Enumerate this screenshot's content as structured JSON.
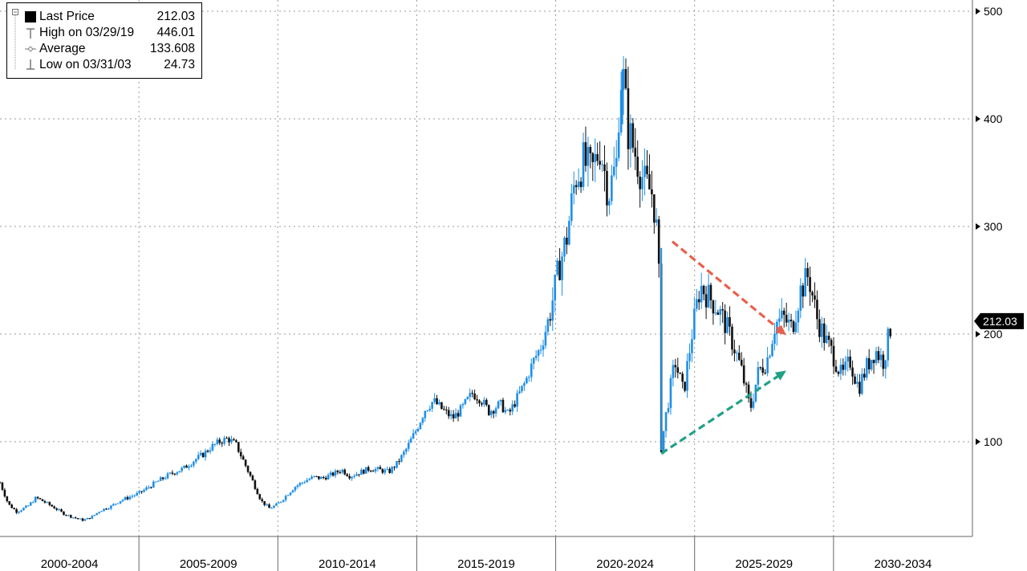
{
  "legend": {
    "items": [
      {
        "label": "Last Price",
        "value": "212.03",
        "marker": "filled-square-icon"
      },
      {
        "label": "High on 03/29/19",
        "value": "446.01",
        "marker": "high-marker-icon"
      },
      {
        "label": "Average",
        "value": "133.608",
        "marker": "average-marker-icon"
      },
      {
        "label": "Low on 03/31/03",
        "value": "24.73",
        "marker": "low-marker-icon"
      }
    ]
  },
  "last_price_tag": "212.03",
  "colors": {
    "up": "#1f8fe6",
    "down": "#111111",
    "trend_upper": "#e8604c",
    "trend_lower": "#22a086",
    "grid": "#9a9a9a"
  },
  "chart_data": {
    "type": "candlestick",
    "y_axis": {
      "ticks": [
        100,
        200,
        300,
        400,
        500
      ],
      "range": [
        0,
        500
      ],
      "side": "right"
    },
    "x_axis": {
      "labels": [
        "2000-2004",
        "2005-2009",
        "2010-2014",
        "2015-2019",
        "2020-2024",
        "2025-2029",
        "2030-2034"
      ],
      "range": [
        2000,
        2035
      ]
    },
    "grid": true,
    "series": [
      {
        "points": [
          [
            2000.0,
            62
          ],
          [
            2000.3,
            42
          ],
          [
            2000.6,
            35
          ],
          [
            2001.0,
            40
          ],
          [
            2001.3,
            48
          ],
          [
            2001.6,
            44
          ],
          [
            2002.0,
            38
          ],
          [
            2002.3,
            33
          ],
          [
            2002.6,
            30
          ],
          [
            2003.0,
            27
          ],
          [
            2003.3,
            30
          ],
          [
            2003.6,
            36
          ],
          [
            2004.0,
            40
          ],
          [
            2004.3,
            45
          ],
          [
            2004.6,
            48
          ],
          [
            2005.0,
            52
          ],
          [
            2005.3,
            57
          ],
          [
            2005.6,
            62
          ],
          [
            2006.0,
            68
          ],
          [
            2006.3,
            72
          ],
          [
            2006.6,
            75
          ],
          [
            2007.0,
            83
          ],
          [
            2007.3,
            88
          ],
          [
            2007.6,
            95
          ],
          [
            2007.9,
            100
          ],
          [
            2008.2,
            103
          ],
          [
            2008.5,
            97
          ],
          [
            2008.8,
            80
          ],
          [
            2009.1,
            63
          ],
          [
            2009.4,
            45
          ],
          [
            2009.7,
            38
          ],
          [
            2010.0,
            42
          ],
          [
            2010.3,
            50
          ],
          [
            2010.6,
            58
          ],
          [
            2011.0,
            64
          ],
          [
            2011.3,
            67
          ],
          [
            2011.6,
            66
          ],
          [
            2012.0,
            70
          ],
          [
            2012.3,
            74
          ],
          [
            2012.6,
            68
          ],
          [
            2013.0,
            72
          ],
          [
            2013.3,
            75
          ],
          [
            2013.6,
            74
          ],
          [
            2014.0,
            72
          ],
          [
            2014.3,
            80
          ],
          [
            2014.6,
            92
          ],
          [
            2015.0,
            112
          ],
          [
            2015.3,
            130
          ],
          [
            2015.6,
            138
          ],
          [
            2016.0,
            128
          ],
          [
            2016.3,
            122
          ],
          [
            2016.6,
            130
          ],
          [
            2017.0,
            145
          ],
          [
            2017.3,
            140
          ],
          [
            2017.6,
            128
          ],
          [
            2018.0,
            135
          ],
          [
            2018.3,
            125
          ],
          [
            2018.6,
            140
          ],
          [
            2018.9,
            155
          ],
          [
            2019.2,
            175
          ],
          [
            2019.5,
            190
          ],
          [
            2019.8,
            220
          ],
          [
            2020.1,
            260
          ],
          [
            2020.4,
            290
          ],
          [
            2020.7,
            345
          ],
          [
            2021.0,
            360
          ],
          [
            2021.3,
            350
          ],
          [
            2021.6,
            375
          ],
          [
            2021.9,
            330
          ],
          [
            2022.2,
            360
          ],
          [
            2022.3,
            430
          ],
          [
            2022.4,
            446
          ],
          [
            2022.6,
            390
          ],
          [
            2022.9,
            365
          ],
          [
            2023.2,
            340
          ],
          [
            2023.5,
            330
          ],
          [
            2023.7,
            280
          ],
          [
            2023.8,
            95
          ],
          [
            2024.0,
            130
          ],
          [
            2024.3,
            175
          ],
          [
            2024.6,
            145
          ],
          [
            2024.9,
            200
          ],
          [
            2025.2,
            245
          ],
          [
            2025.5,
            235
          ],
          [
            2025.8,
            225
          ],
          [
            2026.1,
            210
          ],
          [
            2026.4,
            190
          ],
          [
            2026.7,
            165
          ],
          [
            2027.0,
            130
          ],
          [
            2027.3,
            165
          ],
          [
            2027.6,
            175
          ],
          [
            2027.9,
            210
          ],
          [
            2028.2,
            215
          ],
          [
            2028.5,
            205
          ],
          [
            2028.8,
            240
          ],
          [
            2029.1,
            255
          ],
          [
            2029.4,
            215
          ],
          [
            2029.7,
            195
          ],
          [
            2030.0,
            180
          ],
          [
            2030.3,
            160
          ],
          [
            2030.6,
            175
          ],
          [
            2030.9,
            150
          ],
          [
            2031.2,
            170
          ],
          [
            2031.5,
            185
          ],
          [
            2031.8,
            175
          ],
          [
            2032.1,
            212
          ]
        ]
      }
    ],
    "trendlines": [
      {
        "from": [
          2024.2,
          286
        ],
        "to": [
          2028.3,
          199
        ]
      },
      {
        "from": [
          2023.8,
          89
        ],
        "to": [
          2028.3,
          166
        ]
      }
    ]
  }
}
